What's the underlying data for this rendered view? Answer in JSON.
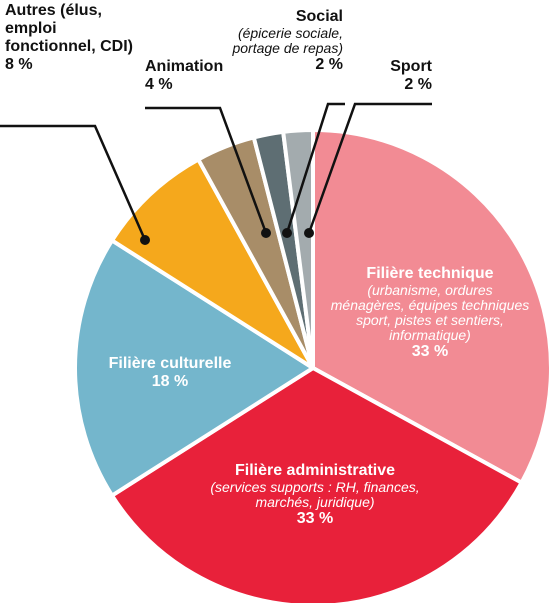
{
  "chart_data": {
    "type": "pie",
    "categories": [
      "Filière technique",
      "Filière administrative",
      "Filière culturelle",
      "Autres (élus, emploi fonctionnel, CDI)",
      "Animation",
      "Social",
      "Sport"
    ],
    "descriptions": [
      "(urbanisme, ordures ménagères, équipes techniques sport, pistes et sentiers, informatique)",
      "(services supports : RH, finances, marchés, juridique)",
      null,
      null,
      null,
      "(épicerie sociale, portage de repas)",
      null
    ],
    "values": [
      33,
      33,
      18,
      8,
      4,
      2,
      2
    ],
    "value_labels": [
      "33 %",
      "33 %",
      "18 %",
      "8 %",
      "4 %",
      "2 %",
      "2 %"
    ],
    "colors": [
      "#f28b94",
      "#e8213a",
      "#74b6cc",
      "#f5a81c",
      "#a88d68",
      "#5e6e73",
      "#a3abae"
    ]
  }
}
